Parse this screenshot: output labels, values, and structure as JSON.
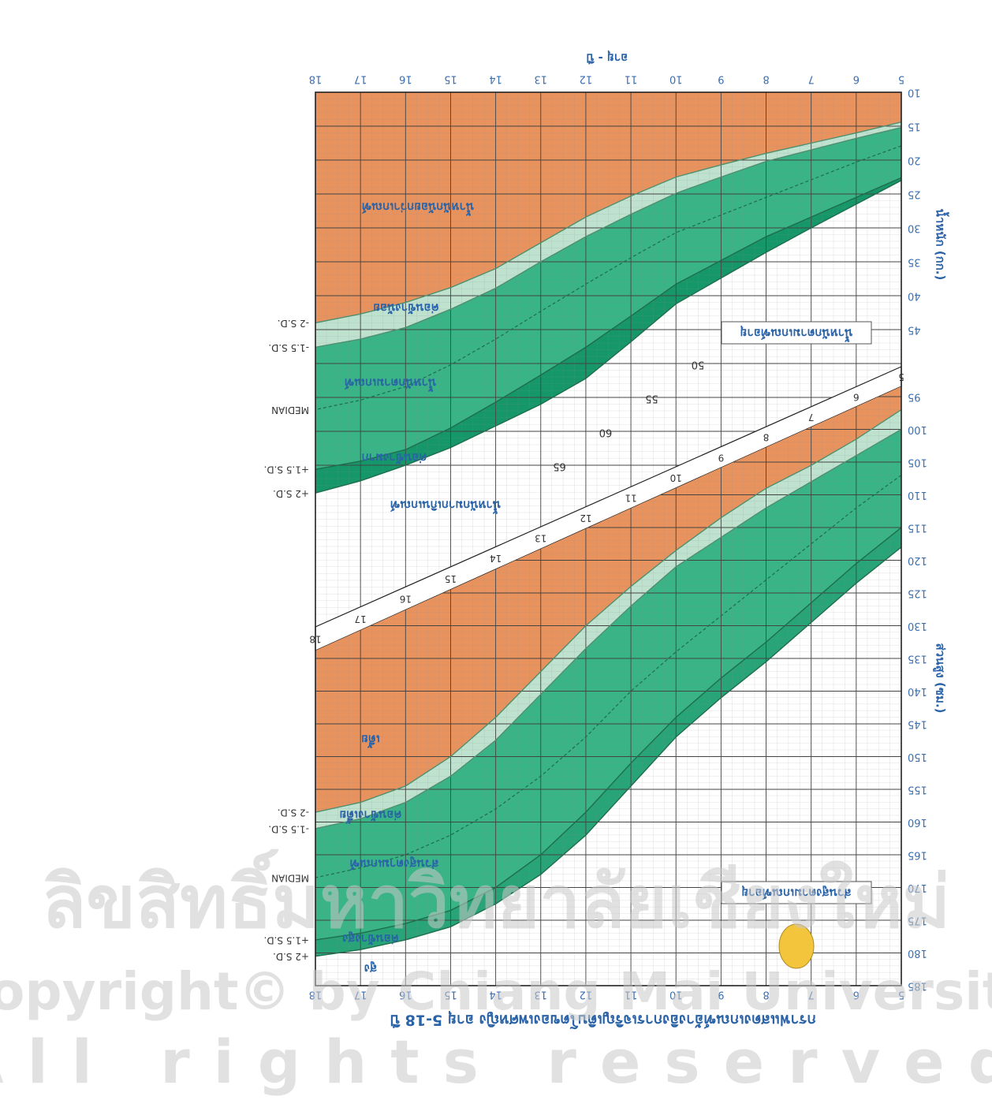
{
  "chart_data": [
    {
      "type": "line",
      "title": "กราฟแสดงเกณฑ์อ้างอิงการเจริญเติบโตของเพศหญิง อายุ 5-18 ปี",
      "x_label": "อายุ - ปี",
      "y_label": "น้ำหนัก (กก.)",
      "x": [
        5,
        6,
        7,
        8,
        9,
        10,
        11,
        12,
        13,
        14,
        15,
        16,
        17,
        18
      ],
      "xlim": [
        5,
        18
      ],
      "xticks": [
        5,
        6,
        7,
        8,
        9,
        10,
        11,
        12,
        13,
        14,
        15,
        16,
        17,
        18
      ],
      "ylim": [
        10,
        70
      ],
      "yticks": [
        10,
        15,
        20,
        25,
        30,
        35,
        40,
        45
      ],
      "inner_yticks": [
        50,
        55,
        60,
        65
      ],
      "diagonal_age_labels": [
        5,
        6,
        7,
        8,
        9,
        10,
        11,
        12,
        13,
        14,
        15,
        16,
        17,
        18
      ],
      "grid": true,
      "band_colors": [
        "#e8935e",
        "#bfe2cf",
        "#38b487",
        "#15976a"
      ],
      "series": [
        {
          "name": "-2 S.D.",
          "color": "#4f8f6e",
          "values": [
            14.4,
            16,
            17.5,
            19,
            20.7,
            22.5,
            25.3,
            28.4,
            32.2,
            36,
            38.8,
            41,
            42.7,
            44
          ]
        },
        {
          "name": "-1.5 S.D.",
          "color": "#4f8f6e",
          "values": [
            15.2,
            16.8,
            18.5,
            20.2,
            22.5,
            24.9,
            28,
            31.3,
            35,
            38.9,
            42,
            44.7,
            46.4,
            47.6
          ]
        },
        {
          "name": "MEDIAN",
          "color": "#1e6e4c",
          "dash": true,
          "values": [
            17.9,
            20.3,
            22.9,
            25.5,
            28.1,
            30.7,
            34.4,
            38.3,
            42.3,
            46.4,
            50.2,
            53.4,
            55.4,
            56.8
          ]
        },
        {
          "name": "+1.5 S.D.",
          "color": "#1e6e4c",
          "values": [
            22.6,
            25.5,
            28.4,
            31.3,
            34.8,
            38.3,
            43,
            47.6,
            51.7,
            55.7,
            59.5,
            62.7,
            64.4,
            65.6
          ]
        },
        {
          "name": "+2 S.D.",
          "color": "#1e6e4c",
          "values": [
            23,
            26.5,
            30,
            33.6,
            37.4,
            41.2,
            46.8,
            52.2,
            56,
            59.2,
            62.4,
            65,
            67.3,
            69.1
          ]
        }
      ],
      "region_labels": [
        "น้ำหนักน้อยกว่าเกณฑ์",
        "ค่อนข้างน้อย",
        "น้ำหนักตามเกณฑ์",
        "ค่อนข้างมาก",
        "น้ำหนักมากเกินเกณฑ์"
      ],
      "caption": "น้ำหนักตามเกณฑ์อายุ"
    },
    {
      "type": "line",
      "y_label": "ส่วนสูง (ซม.)",
      "x": [
        5,
        6,
        7,
        8,
        9,
        10,
        11,
        12,
        13,
        14,
        15,
        16,
        17,
        18
      ],
      "xlim": [
        5,
        18
      ],
      "xticks": [
        5,
        6,
        7,
        8,
        9,
        10,
        11,
        12,
        13,
        14,
        15,
        16,
        17,
        18
      ],
      "ylim": [
        95,
        185
      ],
      "yticks": [
        95,
        100,
        105,
        110,
        115,
        120,
        125,
        130,
        135,
        140,
        145,
        150,
        155,
        160,
        165,
        170,
        175,
        180,
        185
      ],
      "grid": true,
      "band_colors": [
        "#e8935e",
        "#bfe2cf",
        "#38b487",
        "#27a478"
      ],
      "series": [
        {
          "name": "-2 S.D.",
          "color": "#4f8f6e",
          "values": [
            97,
            101.5,
            105.5,
            109,
            113.5,
            118.5,
            124,
            130,
            137,
            144,
            150,
            154.5,
            157,
            158.5
          ]
        },
        {
          "name": "-1.5 S.D.",
          "color": "#4f8f6e",
          "values": [
            100,
            104,
            108,
            112,
            116.5,
            121,
            127,
            133.5,
            140.5,
            147.5,
            153,
            157,
            159.5,
            161
          ]
        },
        {
          "name": "MEDIAN",
          "color": "#1e6e4c",
          "dash": true,
          "values": [
            107,
            112,
            117.5,
            123,
            128.5,
            134,
            140,
            147,
            153,
            158,
            162,
            165,
            167,
            168.5
          ]
        },
        {
          "name": "+1.5 S.D.",
          "color": "#1e6e4c",
          "values": [
            115,
            120.5,
            126.5,
            132.5,
            138,
            144,
            151,
            158.5,
            165,
            170,
            173.5,
            175.5,
            177,
            178
          ]
        },
        {
          "name": "+2 S.D.",
          "color": "#1e6e4c",
          "values": [
            118,
            123.5,
            129.5,
            135.5,
            141,
            147,
            154.5,
            162,
            168,
            172.5,
            176,
            178,
            179.5,
            180.5
          ]
        }
      ],
      "region_labels": [
        "เตี้ย",
        "ค่อนข้างเตี้ย",
        "ส่วนสูงตามเกณฑ์",
        "ค่อนข้างสูง",
        "สูง"
      ],
      "caption": "ส่วนสูงตามเกณฑ์อายุ"
    }
  ],
  "watermark": {
    "line1": "ลิขสิทธิ์มหาวิทยาลัยเชียงใหม่",
    "line2": "Copyright© by Chiang Mai University",
    "line3": "All rights reserved"
  }
}
